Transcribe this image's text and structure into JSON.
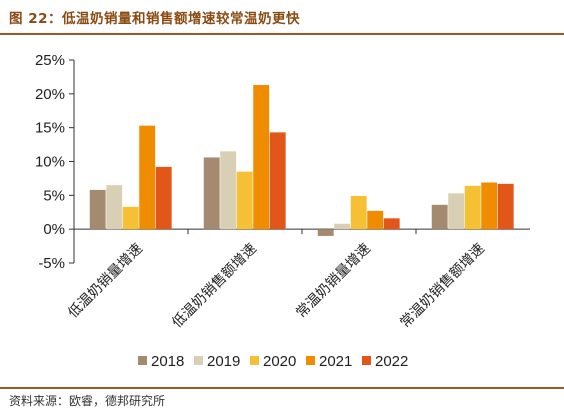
{
  "header": {
    "title": "图 22：低温奶销量和销售额增速较常温奶更快"
  },
  "footer": {
    "source": "资料来源：欧睿，德邦研究所"
  },
  "colors": [
    "#a48a6e",
    "#d9cfb5",
    "#f5c034",
    "#f08c00",
    "#e2561a"
  ],
  "chart_data": {
    "type": "bar",
    "title": "",
    "xlabel": "",
    "ylabel": "",
    "categories": [
      "低温奶销量增速",
      "低温奶销售额增速",
      "常温奶销量增速",
      "常温奶销售额增速"
    ],
    "series": [
      {
        "name": "2018",
        "values": [
          5.8,
          10.6,
          -1.0,
          3.6
        ]
      },
      {
        "name": "2019",
        "values": [
          6.5,
          11.5,
          0.8,
          5.3
        ]
      },
      {
        "name": "2020",
        "values": [
          3.3,
          8.5,
          4.9,
          6.4
        ]
      },
      {
        "name": "2021",
        "values": [
          15.3,
          21.3,
          2.7,
          6.9
        ]
      },
      {
        "name": "2022",
        "values": [
          9.2,
          14.3,
          1.6,
          6.7
        ]
      }
    ],
    "ylim": [
      -5,
      25
    ],
    "yticks": [
      -5,
      0,
      5,
      10,
      15,
      20,
      25
    ],
    "ytick_labels": [
      "-5%",
      "0%",
      "5%",
      "10%",
      "15%",
      "20%",
      "25%"
    ],
    "grid": false,
    "legend_position": "bottom"
  }
}
